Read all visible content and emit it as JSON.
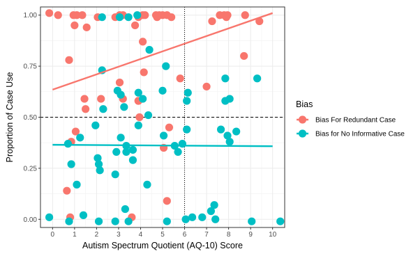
{
  "chart_data": {
    "type": "scatter",
    "xlabel": "Autism Spectrum Quotient (AQ-10) Score",
    "ylabel": "Proportion of Case Use",
    "xlim": [
      -0.55,
      10.55
    ],
    "ylim": [
      -0.04,
      1.04
    ],
    "x_ticks": [
      0,
      1,
      2,
      3,
      4,
      5,
      6,
      7,
      8,
      9,
      10
    ],
    "x_tick_labels": [
      "0",
      "1",
      "2",
      "3",
      "4",
      "5",
      "6",
      "7",
      "8",
      "9",
      "10"
    ],
    "y_ticks": [
      0,
      0.25,
      0.5,
      0.75,
      1.0
    ],
    "y_tick_labels": [
      "0.00",
      "0.25",
      "0.50",
      "0.75",
      "1.00"
    ],
    "grid": true,
    "legend": {
      "title": "Bias",
      "placement": "right",
      "entries": [
        "Bias For Redundant Case",
        "Bias for No Informative Case"
      ]
    },
    "reference_lines": {
      "horizontal": 0.5,
      "vertical": 6
    },
    "series": [
      {
        "name": "Bias For Redundant Case",
        "color": "#F8766D",
        "fit": {
          "x": [
            0,
            10
          ],
          "y": [
            0.635,
            1.01
          ]
        },
        "points": [
          [
            -0.15,
            1.01
          ],
          [
            0.25,
            1.0
          ],
          [
            0.95,
            1.0
          ],
          [
            1.1,
            1.0
          ],
          [
            1.35,
            1.0
          ],
          [
            1.0,
            0.95
          ],
          [
            1.55,
            0.94
          ],
          [
            2.05,
            0.99
          ],
          [
            2.85,
            0.99
          ],
          [
            3.05,
            1.0
          ],
          [
            3.2,
            1.0
          ],
          [
            3.75,
            0.95
          ],
          [
            3.9,
            0.99
          ],
          [
            4.1,
            1.0
          ],
          [
            4.2,
            1.0
          ],
          [
            4.7,
            1.0
          ],
          [
            4.75,
            0.99
          ],
          [
            4.85,
            1.0
          ],
          [
            5.0,
            1.0
          ],
          [
            5.2,
            1.0
          ],
          [
            5.4,
            0.99
          ],
          [
            7.25,
            0.97
          ],
          [
            7.6,
            1.0
          ],
          [
            7.8,
            1.0
          ],
          [
            7.9,
            0.99
          ],
          [
            7.95,
            1.0
          ],
          [
            8.75,
            1.0
          ],
          [
            9.4,
            0.97
          ],
          [
            0.75,
            0.78
          ],
          [
            4.1,
            0.87
          ],
          [
            4.15,
            0.72
          ],
          [
            5.8,
            0.69
          ],
          [
            8.7,
            0.8
          ],
          [
            7.0,
            0.65
          ],
          [
            1.45,
            0.59
          ],
          [
            1.5,
            0.54
          ],
          [
            2.2,
            0.59
          ],
          [
            3.05,
            0.67
          ],
          [
            3.2,
            0.59
          ],
          [
            3.9,
            0.58
          ],
          [
            3.95,
            0.5
          ],
          [
            3.9,
            0.58
          ],
          [
            1.05,
            0.43
          ],
          [
            0.85,
            0.38
          ],
          [
            5.05,
            0.35
          ],
          [
            5.3,
            0.45
          ],
          [
            0.65,
            0.14
          ],
          [
            0.8,
            0.01
          ],
          [
            3.6,
            0.01
          ],
          [
            5.2,
            0.09
          ]
        ]
      },
      {
        "name": "Bias for No Informative Case",
        "color": "#00BFC4",
        "fit": {
          "x": [
            0,
            10
          ],
          "y": [
            0.365,
            0.358
          ]
        },
        "points": [
          [
            2.25,
            0.99
          ],
          [
            3.05,
            0.99
          ],
          [
            3.45,
            0.99
          ],
          [
            3.85,
            1.0
          ],
          [
            4.4,
            0.83
          ],
          [
            2.25,
            0.73
          ],
          [
            5.15,
            0.75
          ],
          [
            2.95,
            0.63
          ],
          [
            3.1,
            0.61
          ],
          [
            3.25,
            0.55
          ],
          [
            3.9,
            0.62
          ],
          [
            4.1,
            0.59
          ],
          [
            4.35,
            0.51
          ],
          [
            2.3,
            0.54
          ],
          [
            5.0,
            0.63
          ],
          [
            6.15,
            0.62
          ],
          [
            6.1,
            0.58
          ],
          [
            7.85,
            0.69
          ],
          [
            9.3,
            0.69
          ],
          [
            7.85,
            0.58
          ],
          [
            8.05,
            0.59
          ],
          [
            7.65,
            0.44
          ],
          [
            7.95,
            0.41
          ],
          [
            8.35,
            0.43
          ],
          [
            8.05,
            0.38
          ],
          [
            6.1,
            0.44
          ],
          [
            1.95,
            0.46
          ],
          [
            3.1,
            0.4
          ],
          [
            3.9,
            0.46
          ],
          [
            0.7,
            0.37
          ],
          [
            1.25,
            0.4
          ],
          [
            2.9,
            0.33
          ],
          [
            3.35,
            0.36
          ],
          [
            3.35,
            0.33
          ],
          [
            3.65,
            0.34
          ],
          [
            5.05,
            0.41
          ],
          [
            5.55,
            0.36
          ],
          [
            5.7,
            0.33
          ],
          [
            5.9,
            0.37
          ],
          [
            3.65,
            0.29
          ],
          [
            2.05,
            0.3
          ],
          [
            2.1,
            0.27
          ],
          [
            2.15,
            0.24
          ],
          [
            0.85,
            0.27
          ],
          [
            1.1,
            0.17
          ],
          [
            2.85,
            0.22
          ],
          [
            4.3,
            0.17
          ],
          [
            -0.15,
            0.01
          ],
          [
            0.75,
            -0.01
          ],
          [
            1.4,
            0.02
          ],
          [
            2.1,
            -0.01
          ],
          [
            2.85,
            -0.01
          ],
          [
            3.3,
            0.05
          ],
          [
            3.45,
            -0.01
          ],
          [
            5.2,
            -0.01
          ],
          [
            6.05,
            0.0
          ],
          [
            6.35,
            0.01
          ],
          [
            6.8,
            0.01
          ],
          [
            7.2,
            0.04
          ],
          [
            7.35,
            0.07
          ],
          [
            7.4,
            0.0
          ],
          [
            9.05,
            -0.01
          ],
          [
            10.35,
            -0.01
          ]
        ]
      }
    ]
  }
}
